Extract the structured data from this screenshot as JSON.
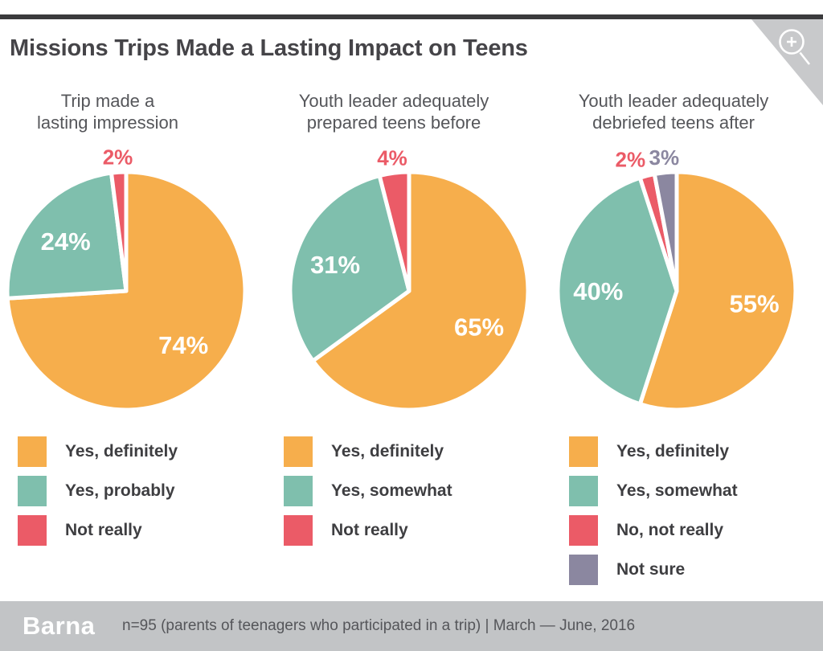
{
  "title": "Missions Trips Made a Lasting Impact on Teens",
  "colors": {
    "orange": "#F6AE4C",
    "teal": "#7FBFAD",
    "red": "#EB5B67",
    "purple": "#8B87A0",
    "top_rule": "#3B3B3D",
    "corner_bg": "#C8C9CB",
    "footer_bg": "#C2C4C6",
    "heading_text": "#454448",
    "body_text": "#55565A",
    "legend_text": "#3E3E41",
    "inside_label_text": "#FFFFFF"
  },
  "icons": {
    "zoom_icon": "magnifier-plus"
  },
  "chart_data": [
    {
      "type": "pie",
      "title_lines": [
        "Trip made a",
        "lasting impression"
      ],
      "legend_position": "bottom-left",
      "slices": [
        {
          "label": "Yes, definitely",
          "value": 74,
          "value_label": "74%",
          "color": "#F6AE4C"
        },
        {
          "label": "Yes, probably",
          "value": 24,
          "value_label": "24%",
          "color": "#7FBFAD"
        },
        {
          "label": "Not really",
          "value": 2,
          "value_label": "2%",
          "color": "#EB5B67"
        }
      ]
    },
    {
      "type": "pie",
      "title_lines": [
        "Youth leader adequately",
        "prepared teens before"
      ],
      "legend_position": "bottom-left",
      "slices": [
        {
          "label": "Yes, definitely",
          "value": 65,
          "value_label": "65%",
          "color": "#F6AE4C"
        },
        {
          "label": "Yes, somewhat",
          "value": 31,
          "value_label": "31%",
          "color": "#7FBFAD"
        },
        {
          "label": "Not really",
          "value": 4,
          "value_label": "4%",
          "color": "#EB5B67"
        }
      ]
    },
    {
      "type": "pie",
      "title_lines": [
        "Youth leader adequately",
        "debriefed teens after"
      ],
      "legend_position": "bottom-left",
      "slices": [
        {
          "label": "Yes, definitely",
          "value": 55,
          "value_label": "55%",
          "color": "#F6AE4C"
        },
        {
          "label": "Yes, somewhat",
          "value": 40,
          "value_label": "40%",
          "color": "#7FBFAD"
        },
        {
          "label": "No, not really",
          "value": 2,
          "value_label": "2%",
          "color": "#EB5B67"
        },
        {
          "label": "Not sure",
          "value": 3,
          "value_label": "3%",
          "color": "#8B87A0"
        }
      ]
    }
  ],
  "footer": {
    "logo": "Barna",
    "source": "n=95 (parents of teenagers who participated in a trip)  |  March — June, 2016"
  }
}
